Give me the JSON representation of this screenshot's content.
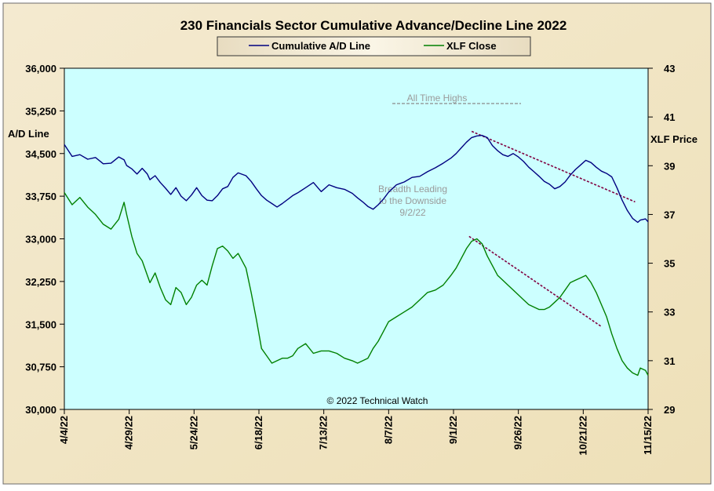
{
  "chart_data": {
    "type": "line",
    "title": "230 Financials  Sector Cumulative  Advance/Decline  Line 2022",
    "legend": {
      "position": "top-center",
      "items": [
        "Cumulative A/D Line",
        "XLF Close"
      ]
    },
    "left_axis": {
      "label": "A/D Line",
      "range": [
        30000,
        36000
      ],
      "ticks": [
        "36,000",
        "35,250",
        "34,500",
        "33,750",
        "33,000",
        "32,250",
        "31,500",
        "30,750",
        "30,000"
      ],
      "tick_values": [
        36000,
        35250,
        34500,
        33750,
        33000,
        32250,
        31500,
        30750,
        30000
      ]
    },
    "right_axis": {
      "label": "XLF Price",
      "range": [
        29,
        43
      ],
      "ticks": [
        "43",
        "41",
        "39",
        "37",
        "35",
        "33",
        "31",
        "29"
      ],
      "tick_values": [
        43,
        41,
        39,
        37,
        35,
        33,
        31,
        29
      ]
    },
    "x_axis": {
      "ticks": [
        "4/4/22",
        "4/29/22",
        "5/24/22",
        "6/18/22",
        "7/13/22",
        "8/7/22",
        "9/1/22",
        "9/26/22",
        "10/21/22",
        "11/15/22"
      ],
      "range_days": [
        0,
        225
      ]
    },
    "colors": {
      "plot_bg": "#ccffff",
      "ad_line": "#000080",
      "xlf_line": "#008000",
      "trend": "#800040",
      "annotation": "#9a9a9a",
      "frame_bg": "#f2e5c4"
    },
    "series": [
      {
        "name": "Cumulative A/D Line",
        "axis": "left",
        "points": [
          [
            0,
            34660
          ],
          [
            3,
            34450
          ],
          [
            6,
            34480
          ],
          [
            9,
            34400
          ],
          [
            12,
            34430
          ],
          [
            15,
            34320
          ],
          [
            18,
            34330
          ],
          [
            21,
            34440
          ],
          [
            23,
            34390
          ],
          [
            24,
            34290
          ],
          [
            26,
            34230
          ],
          [
            28,
            34140
          ],
          [
            30,
            34240
          ],
          [
            32,
            34140
          ],
          [
            33,
            34040
          ],
          [
            35,
            34110
          ],
          [
            37,
            33990
          ],
          [
            39,
            33890
          ],
          [
            41,
            33780
          ],
          [
            43,
            33900
          ],
          [
            45,
            33750
          ],
          [
            47,
            33670
          ],
          [
            49,
            33770
          ],
          [
            51,
            33900
          ],
          [
            53,
            33760
          ],
          [
            55,
            33680
          ],
          [
            57,
            33670
          ],
          [
            59,
            33760
          ],
          [
            61,
            33880
          ],
          [
            63,
            33920
          ],
          [
            65,
            34080
          ],
          [
            67,
            34160
          ],
          [
            70,
            34110
          ],
          [
            72,
            34010
          ],
          [
            74,
            33880
          ],
          [
            76,
            33760
          ],
          [
            78,
            33680
          ],
          [
            80,
            33620
          ],
          [
            82,
            33560
          ],
          [
            84,
            33620
          ],
          [
            86,
            33690
          ],
          [
            88,
            33760
          ],
          [
            90,
            33810
          ],
          [
            93,
            33900
          ],
          [
            96,
            33990
          ],
          [
            99,
            33830
          ],
          [
            102,
            33950
          ],
          [
            105,
            33900
          ],
          [
            108,
            33870
          ],
          [
            111,
            33800
          ],
          [
            113,
            33720
          ],
          [
            115,
            33650
          ],
          [
            117,
            33570
          ],
          [
            119,
            33520
          ],
          [
            121,
            33600
          ],
          [
            123,
            33700
          ],
          [
            125,
            33820
          ],
          [
            128,
            33950
          ],
          [
            131,
            34000
          ],
          [
            134,
            34080
          ],
          [
            137,
            34100
          ],
          [
            140,
            34180
          ],
          [
            143,
            34250
          ],
          [
            146,
            34330
          ],
          [
            149,
            34420
          ],
          [
            151,
            34500
          ],
          [
            153,
            34600
          ],
          [
            155,
            34700
          ],
          [
            157,
            34780
          ],
          [
            159,
            34810
          ],
          [
            161,
            34820
          ],
          [
            163,
            34780
          ],
          [
            165,
            34640
          ],
          [
            167,
            34550
          ],
          [
            169,
            34480
          ],
          [
            171,
            34450
          ],
          [
            173,
            34500
          ],
          [
            175,
            34440
          ],
          [
            177,
            34360
          ],
          [
            179,
            34260
          ],
          [
            181,
            34180
          ],
          [
            183,
            34100
          ],
          [
            185,
            34010
          ],
          [
            187,
            33960
          ],
          [
            189,
            33880
          ],
          [
            191,
            33920
          ],
          [
            193,
            34000
          ],
          [
            195,
            34120
          ],
          [
            197,
            34220
          ],
          [
            199,
            34300
          ],
          [
            201,
            34380
          ],
          [
            203,
            34340
          ],
          [
            205,
            34260
          ],
          [
            207,
            34190
          ],
          [
            209,
            34150
          ],
          [
            211,
            34090
          ],
          [
            213,
            33900
          ],
          [
            215,
            33680
          ],
          [
            217,
            33500
          ],
          [
            219,
            33360
          ],
          [
            221,
            33290
          ],
          [
            222,
            33330
          ],
          [
            224,
            33350
          ],
          [
            225,
            33300
          ]
        ]
      },
      {
        "name": "XLF Close",
        "axis": "right",
        "points": [
          [
            0,
            37.9
          ],
          [
            3,
            37.4
          ],
          [
            6,
            37.7
          ],
          [
            9,
            37.3
          ],
          [
            12,
            37.0
          ],
          [
            15,
            36.6
          ],
          [
            18,
            36.4
          ],
          [
            21,
            36.8
          ],
          [
            23,
            37.5
          ],
          [
            24,
            37.0
          ],
          [
            26,
            36.1
          ],
          [
            28,
            35.4
          ],
          [
            30,
            35.1
          ],
          [
            32,
            34.5
          ],
          [
            33,
            34.2
          ],
          [
            35,
            34.6
          ],
          [
            37,
            34.0
          ],
          [
            39,
            33.5
          ],
          [
            41,
            33.3
          ],
          [
            43,
            34.0
          ],
          [
            45,
            33.8
          ],
          [
            47,
            33.3
          ],
          [
            49,
            33.6
          ],
          [
            51,
            34.1
          ],
          [
            53,
            34.3
          ],
          [
            55,
            34.1
          ],
          [
            57,
            34.9
          ],
          [
            59,
            35.6
          ],
          [
            61,
            35.7
          ],
          [
            63,
            35.5
          ],
          [
            65,
            35.2
          ],
          [
            67,
            35.4
          ],
          [
            70,
            34.8
          ],
          [
            72,
            33.8
          ],
          [
            74,
            32.7
          ],
          [
            76,
            31.5
          ],
          [
            78,
            31.2
          ],
          [
            80,
            30.9
          ],
          [
            82,
            31.0
          ],
          [
            84,
            31.1
          ],
          [
            86,
            31.1
          ],
          [
            88,
            31.2
          ],
          [
            90,
            31.5
          ],
          [
            93,
            31.7
          ],
          [
            96,
            31.3
          ],
          [
            99,
            31.4
          ],
          [
            102,
            31.4
          ],
          [
            105,
            31.3
          ],
          [
            108,
            31.1
          ],
          [
            111,
            31.0
          ],
          [
            113,
            30.9
          ],
          [
            115,
            31.0
          ],
          [
            117,
            31.1
          ],
          [
            119,
            31.5
          ],
          [
            121,
            31.8
          ],
          [
            123,
            32.2
          ],
          [
            125,
            32.6
          ],
          [
            128,
            32.8
          ],
          [
            131,
            33.0
          ],
          [
            134,
            33.2
          ],
          [
            137,
            33.5
          ],
          [
            140,
            33.8
          ],
          [
            143,
            33.9
          ],
          [
            146,
            34.1
          ],
          [
            149,
            34.5
          ],
          [
            151,
            34.8
          ],
          [
            153,
            35.2
          ],
          [
            155,
            35.6
          ],
          [
            157,
            35.9
          ],
          [
            159,
            36.0
          ],
          [
            161,
            35.8
          ],
          [
            163,
            35.3
          ],
          [
            165,
            34.9
          ],
          [
            167,
            34.5
          ],
          [
            169,
            34.3
          ],
          [
            171,
            34.1
          ],
          [
            173,
            33.9
          ],
          [
            175,
            33.7
          ],
          [
            177,
            33.5
          ],
          [
            179,
            33.3
          ],
          [
            181,
            33.2
          ],
          [
            183,
            33.1
          ],
          [
            185,
            33.1
          ],
          [
            187,
            33.2
          ],
          [
            189,
            33.4
          ],
          [
            191,
            33.6
          ],
          [
            193,
            33.9
          ],
          [
            195,
            34.2
          ],
          [
            197,
            34.3
          ],
          [
            199,
            34.4
          ],
          [
            201,
            34.5
          ],
          [
            203,
            34.2
          ],
          [
            205,
            33.8
          ],
          [
            207,
            33.3
          ],
          [
            209,
            32.8
          ],
          [
            211,
            32.1
          ],
          [
            213,
            31.5
          ],
          [
            215,
            31.0
          ],
          [
            217,
            30.7
          ],
          [
            219,
            30.5
          ],
          [
            221,
            30.4
          ],
          [
            222,
            30.7
          ],
          [
            224,
            30.6
          ],
          [
            225,
            30.4
          ]
        ]
      }
    ],
    "trendlines": [
      {
        "axis": "left",
        "from": [
          157,
          34890
        ],
        "to": [
          220,
          33650
        ]
      },
      {
        "axis": "right",
        "from": [
          156,
          36.1
        ],
        "to": [
          207,
          32.4
        ]
      }
    ],
    "annotations": {
      "all_time_highs": "All Time Highs",
      "breadth_line1": "Breadth Leading",
      "breadth_line2": "to the Downside",
      "breadth_line3": "9/2/22",
      "copyright": "© 2022 Technical Watch"
    }
  }
}
